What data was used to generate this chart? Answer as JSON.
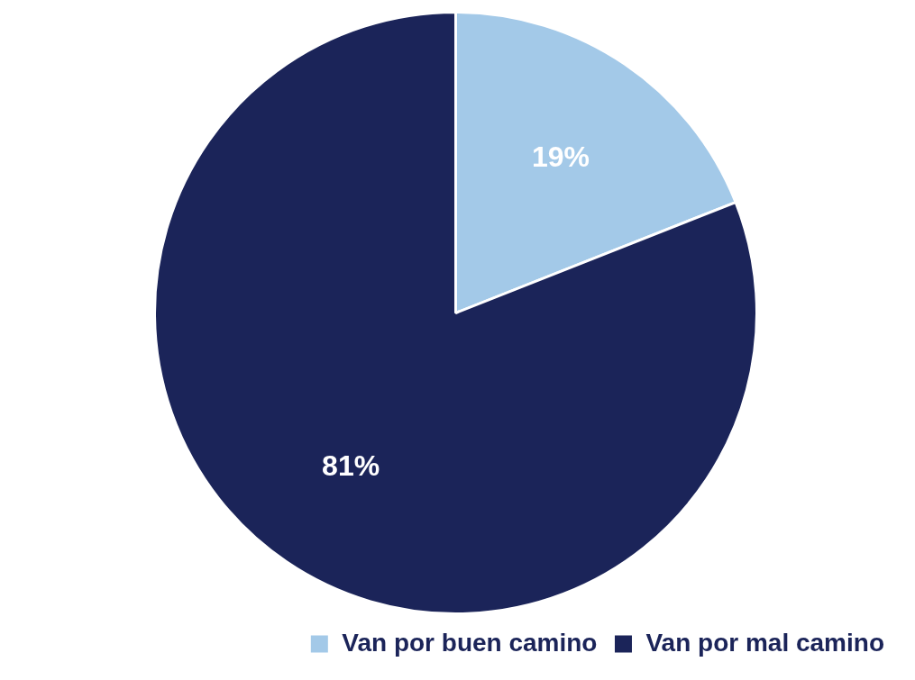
{
  "chart_data": {
    "type": "pie",
    "categories": [
      "Van por buen camino",
      "Van por mal camino"
    ],
    "values": [
      19,
      81
    ],
    "colors": [
      "#a3c9e8",
      "#1b2459"
    ],
    "value_labels": [
      "19%",
      "81%"
    ],
    "legend": "bottom right"
  }
}
